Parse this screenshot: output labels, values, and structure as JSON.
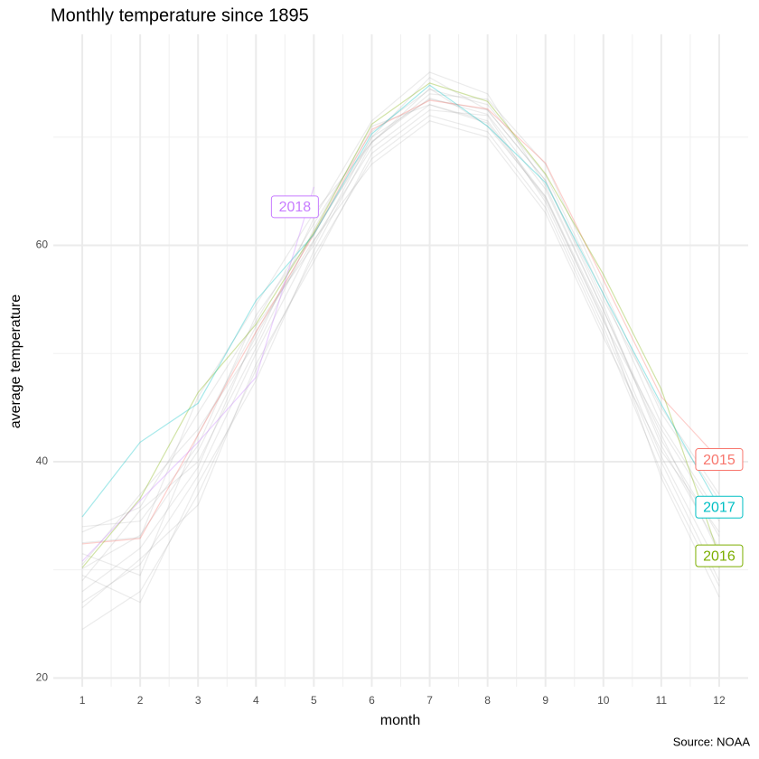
{
  "chart_data": {
    "type": "line",
    "title": "Monthly temperature since 1895",
    "x_label": "month",
    "y_label": "average temperature",
    "caption": "Source: NOAA",
    "x": [
      1,
      2,
      3,
      4,
      5,
      6,
      7,
      8,
      9,
      10,
      11,
      12
    ],
    "xlim": [
      0.5,
      12.5
    ],
    "xticks": [
      1,
      2,
      3,
      4,
      5,
      6,
      7,
      8,
      9,
      10,
      11,
      12
    ],
    "x_minor_ticks": [
      1.5,
      2.5,
      3.5,
      4.5,
      5.5,
      6.5,
      7.5,
      8.5,
      9.5,
      10.5,
      11.5
    ],
    "ylim": [
      19.2,
      79.5
    ],
    "yticks": [
      20,
      40,
      60
    ],
    "y_minor_ticks": [
      30,
      50,
      70
    ],
    "grid": true,
    "background_color": "#999999",
    "background_series": [
      [
        30.1,
        33.2,
        41.0,
        51.6,
        61.2,
        69.6,
        73.6,
        72.1,
        65.2,
        54.0,
        42.0,
        33.1
      ],
      [
        27.0,
        30.5,
        38.7,
        50.0,
        60.4,
        69.0,
        73.0,
        71.3,
        64.3,
        53.2,
        40.5,
        30.2
      ],
      [
        33.5,
        35.8,
        44.5,
        53.0,
        62.0,
        70.5,
        74.4,
        73.0,
        66.5,
        55.5,
        43.5,
        35.0
      ],
      [
        24.5,
        28.0,
        37.0,
        48.5,
        59.0,
        68.0,
        72.0,
        70.5,
        63.5,
        52.0,
        39.0,
        28.5
      ],
      [
        31.5,
        29.5,
        42.5,
        52.5,
        60.0,
        70.0,
        75.5,
        72.5,
        66.0,
        54.5,
        41.5,
        32.0
      ],
      [
        29.0,
        35.5,
        40.0,
        50.5,
        61.5,
        71.0,
        73.0,
        71.5,
        64.5,
        53.0,
        43.0,
        34.5
      ],
      [
        32.5,
        33.0,
        46.0,
        54.5,
        63.0,
        69.5,
        74.0,
        73.5,
        67.5,
        56.0,
        44.5,
        36.5
      ],
      [
        26.5,
        31.0,
        36.0,
        49.0,
        58.5,
        68.5,
        72.5,
        72.0,
        64.0,
        52.5,
        40.0,
        29.0
      ],
      [
        30.5,
        37.0,
        43.0,
        51.0,
        62.5,
        71.5,
        76.0,
        74.0,
        65.5,
        54.0,
        42.5,
        31.5
      ],
      [
        28.0,
        32.0,
        39.5,
        52.0,
        60.5,
        67.5,
        71.5,
        70.0,
        63.0,
        51.5,
        41.0,
        33.5
      ],
      [
        34.0,
        34.5,
        41.5,
        53.5,
        61.0,
        70.0,
        73.5,
        72.5,
        66.0,
        55.0,
        45.0,
        37.0
      ],
      [
        29.5,
        27.0,
        38.0,
        47.5,
        59.5,
        69.5,
        74.5,
        71.0,
        64.5,
        53.5,
        38.5,
        27.5
      ]
    ],
    "series": [
      {
        "name": "2015",
        "color": "#F8766D",
        "values": [
          32.4,
          32.9,
          42.5,
          52.0,
          61.0,
          70.7,
          73.4,
          72.6,
          67.6,
          56.8,
          46.0,
          40.2
        ]
      },
      {
        "name": "2016",
        "color": "#7CAE00",
        "values": [
          30.2,
          36.6,
          46.4,
          52.7,
          61.2,
          71.2,
          75.0,
          73.3,
          66.6,
          57.3,
          46.7,
          31.3
        ]
      },
      {
        "name": "2017",
        "color": "#00BFC4",
        "values": [
          34.9,
          41.8,
          45.4,
          54.9,
          61.0,
          70.3,
          74.8,
          71.0,
          65.8,
          55.5,
          45.3,
          35.8
        ]
      },
      {
        "name": "2018",
        "color": "#C77CFF",
        "values": [
          30.8,
          36.4,
          41.8,
          47.8,
          65.4,
          null,
          null,
          null,
          null,
          null,
          null,
          null
        ]
      }
    ]
  }
}
